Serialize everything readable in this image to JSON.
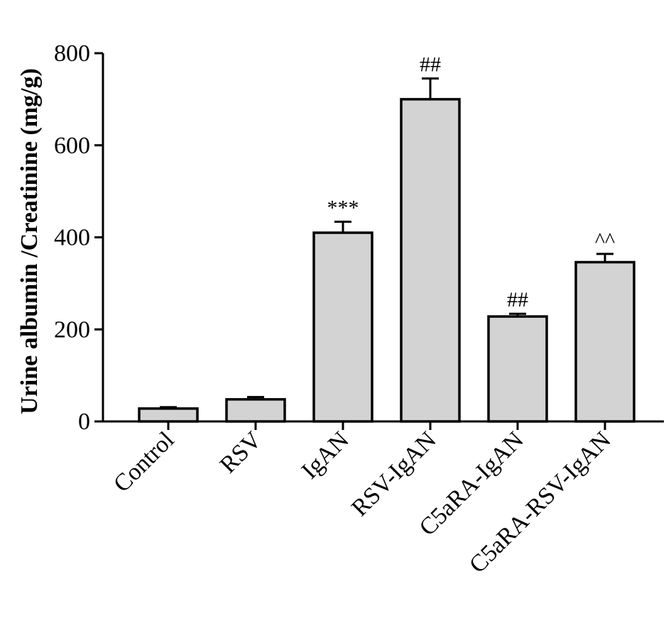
{
  "chart_data": {
    "type": "bar",
    "categories": [
      "Control",
      "RSV",
      "IgAN",
      "RSV-IgAN",
      "C5aRA-IgAN",
      "C5aRA-RSV-IgAN"
    ],
    "values": [
      28,
      48,
      410,
      700,
      228,
      346
    ],
    "errors": [
      3,
      5,
      24,
      45,
      6,
      18
    ],
    "annotations": [
      "",
      "",
      "***",
      "##",
      "##",
      "^^"
    ],
    "title": "",
    "xlabel": "",
    "ylabel": "Urine albumin /Creatinine (mg/g)",
    "ylim": [
      0,
      800
    ],
    "yticks": [
      "0",
      "200",
      "400",
      "600",
      "800"
    ],
    "grid": false,
    "bar_color": "#d3d3d3",
    "edge_color": "#000000"
  }
}
